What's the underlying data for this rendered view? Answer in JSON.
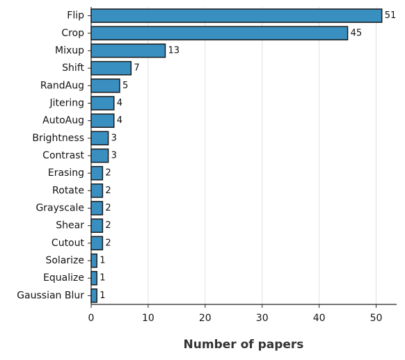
{
  "chart_data": {
    "type": "barh",
    "x_label": "Number of papers",
    "categories": [
      "Flip",
      "Crop",
      "Mixup",
      "Shift",
      "RandAug",
      "Jitering",
      "AutoAug",
      "Brightness",
      "Contrast",
      "Erasing",
      "Rotate",
      "Grayscale",
      "Shear",
      "Cutout",
      "Solarize",
      "Equalize",
      "Gaussian Blur"
    ],
    "values": [
      51,
      45,
      13,
      7,
      5,
      4,
      4,
      3,
      3,
      2,
      2,
      2,
      2,
      2,
      1,
      1,
      1
    ],
    "color": "#3a8fc1",
    "edge_color": "#1a1a1a",
    "xlim": [
      0,
      53.6
    ],
    "xticks": [
      0,
      10,
      20,
      30,
      40,
      50
    ],
    "grid": true
  }
}
